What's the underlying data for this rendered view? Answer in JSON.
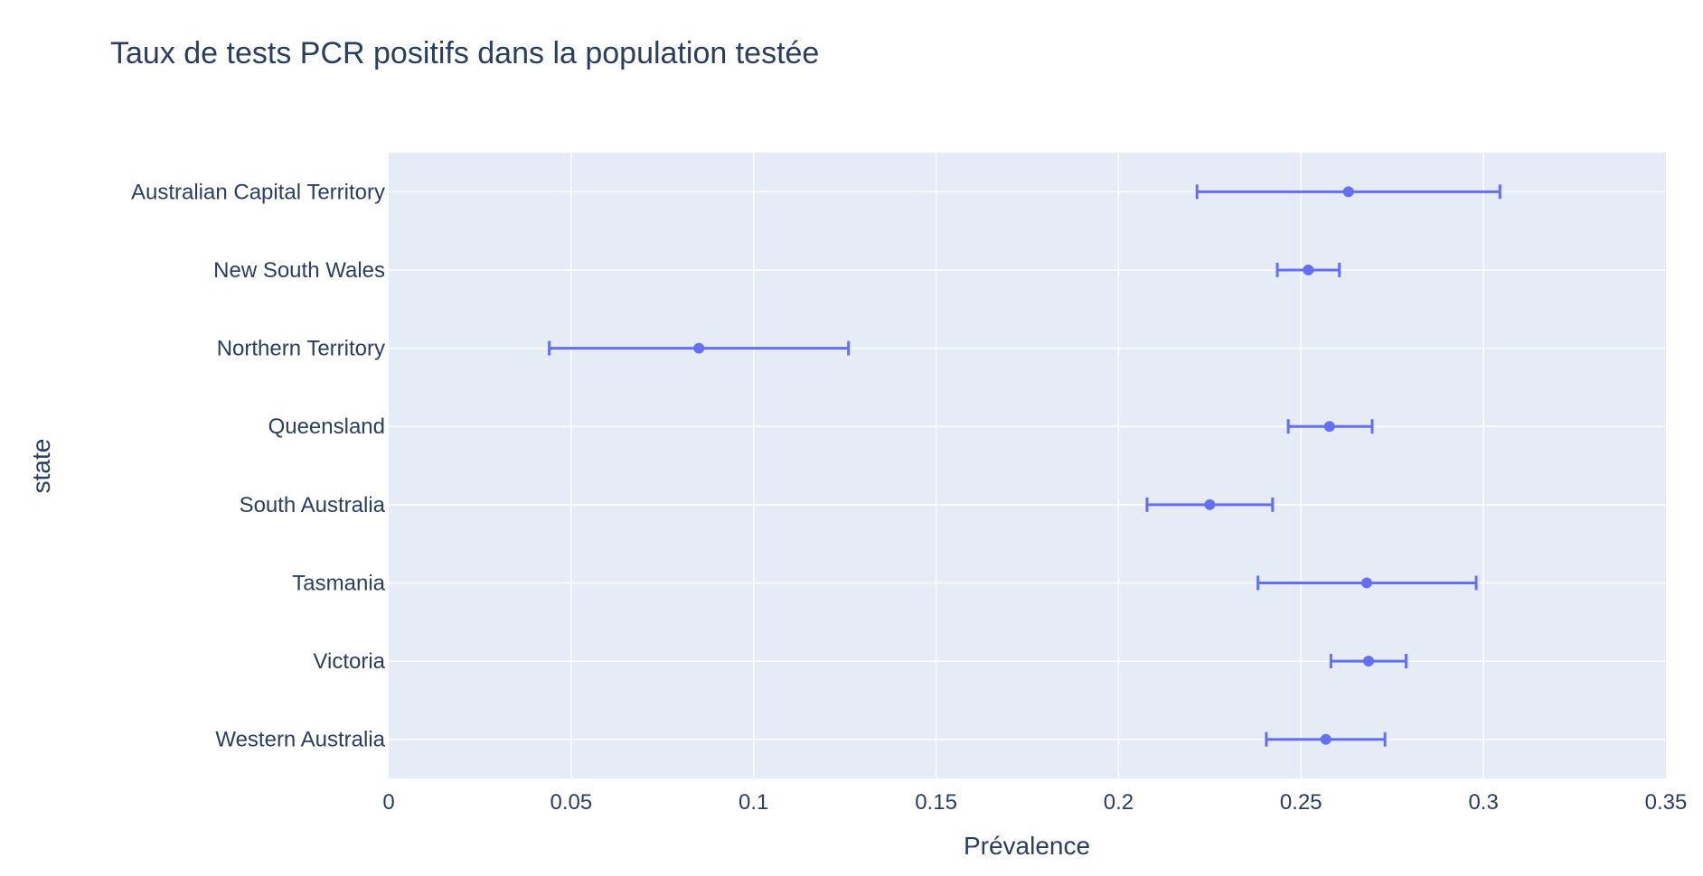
{
  "chart_data": {
    "type": "scatter",
    "title": "Taux de tests PCR positifs dans la population testée",
    "xlabel": "Prévalence",
    "ylabel": "state",
    "xlim": [
      0,
      0.35
    ],
    "x_ticks": [
      {
        "value": 0,
        "label": "0"
      },
      {
        "value": 0.05,
        "label": "0.05"
      },
      {
        "value": 0.1,
        "label": "0.1"
      },
      {
        "value": 0.15,
        "label": "0.15"
      },
      {
        "value": 0.2,
        "label": "0.2"
      },
      {
        "value": 0.25,
        "label": "0.25"
      },
      {
        "value": 0.3,
        "label": "0.3"
      },
      {
        "value": 0.35,
        "label": "0.35"
      }
    ],
    "categories": [
      "Australian Capital Territory",
      "New South Wales",
      "Northern Territory",
      "Queensland",
      "South Australia",
      "Tasmania",
      "Victoria",
      "Western Australia"
    ],
    "points": [
      {
        "state": "Australian Capital Territory",
        "x": 0.263,
        "low": 0.2215,
        "high": 0.3045
      },
      {
        "state": "New South Wales",
        "x": 0.252,
        "low": 0.2435,
        "high": 0.2605
      },
      {
        "state": "Northern Territory",
        "x": 0.085,
        "low": 0.044,
        "high": 0.126
      },
      {
        "state": "Queensland",
        "x": 0.2578,
        "low": 0.2465,
        "high": 0.2695
      },
      {
        "state": "South Australia",
        "x": 0.225,
        "low": 0.2078,
        "high": 0.2422
      },
      {
        "state": "Tasmania",
        "x": 0.268,
        "low": 0.2382,
        "high": 0.298
      },
      {
        "state": "Victoria",
        "x": 0.2685,
        "low": 0.2582,
        "high": 0.2788
      },
      {
        "state": "Western Australia",
        "x": 0.2568,
        "low": 0.2405,
        "high": 0.273
      }
    ],
    "grid": true,
    "colors": {
      "plot_bg": "#e5ecf6",
      "grid": "#ffffff",
      "marker": "#636efa",
      "text": "#2a3f5f"
    }
  }
}
